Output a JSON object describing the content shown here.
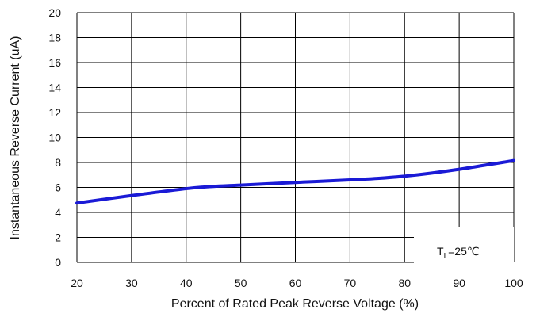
{
  "chart_data": {
    "type": "line",
    "title": "",
    "xlabel": "Percent of Rated Peak Reverse Voltage (%)",
    "ylabel": "Instantaneous Reverse Current (uA)",
    "xlim": [
      20,
      100
    ],
    "ylim": [
      0,
      20
    ],
    "x_ticks": [
      "20",
      "30",
      "40",
      "50",
      "60",
      "70",
      "80",
      "90",
      "100"
    ],
    "y_ticks": [
      "0",
      "2",
      "4",
      "6",
      "8",
      "10",
      "12",
      "14",
      "16",
      "18",
      "20"
    ],
    "grid": true,
    "series": [
      {
        "color": "#1a1ad6",
        "x": [
          20,
          30,
          40,
          45,
          50,
          60,
          70,
          75,
          80,
          85,
          90,
          95,
          100
        ],
        "y": [
          4.75,
          5.35,
          5.9,
          6.08,
          6.18,
          6.4,
          6.6,
          6.72,
          6.9,
          7.15,
          7.45,
          7.8,
          8.15
        ]
      }
    ],
    "annotation": {
      "main": "T",
      "sub": "L",
      "suffix": "=25℃",
      "position": "bottom-right"
    }
  }
}
